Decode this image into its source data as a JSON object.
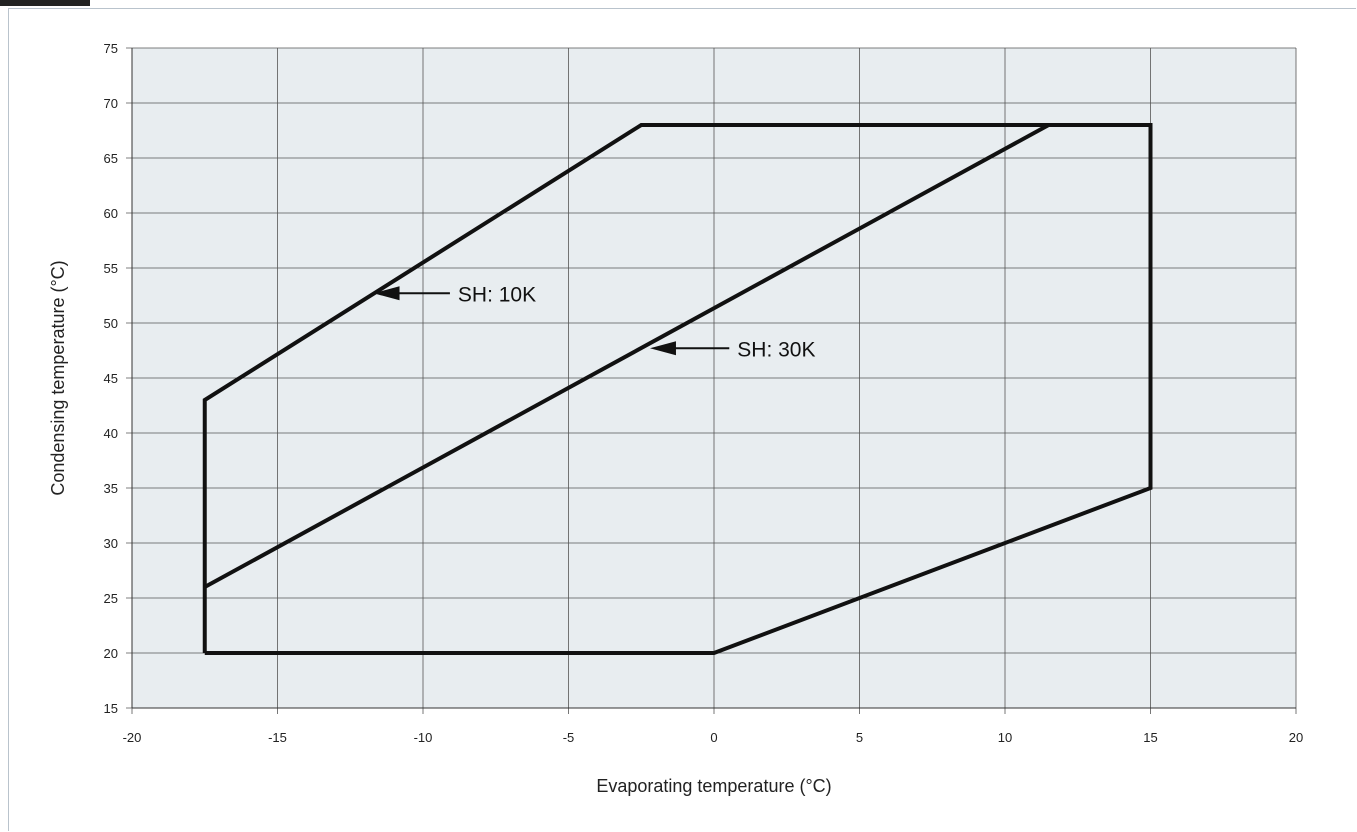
{
  "chart_data": {
    "type": "line",
    "xlabel": "Evaporating temperature (°C)",
    "ylabel": "Condensing temperature (°C)",
    "xlim": [
      -20,
      20
    ],
    "ylim": [
      15,
      75
    ],
    "x_ticks": [
      -20,
      -15,
      -10,
      -5,
      0,
      5,
      10,
      15,
      20
    ],
    "y_ticks": [
      15,
      20,
      25,
      30,
      35,
      40,
      45,
      50,
      55,
      60,
      65,
      70,
      75
    ],
    "grid": true,
    "background": "#e8edf0",
    "line_color": "#111111",
    "series": [
      {
        "name": "SH: 10K",
        "points": [
          [
            -17.5,
            20
          ],
          [
            0,
            20
          ],
          [
            15,
            35
          ],
          [
            15,
            68
          ],
          [
            -2.5,
            68
          ],
          [
            -17.5,
            43
          ],
          [
            -17.5,
            20
          ]
        ]
      },
      {
        "name": "SH: 30K",
        "points": [
          [
            -17.5,
            26
          ],
          [
            11.5,
            68
          ]
        ]
      }
    ],
    "annotations": [
      {
        "text": "SH: 10K",
        "arrow_to": [
          -11.7,
          52.7
        ],
        "text_at": [
          -8.8,
          52.7
        ]
      },
      {
        "text": "SH: 30K",
        "arrow_to": [
          -2.2,
          47.7
        ],
        "text_at": [
          0.8,
          47.7
        ]
      }
    ]
  }
}
